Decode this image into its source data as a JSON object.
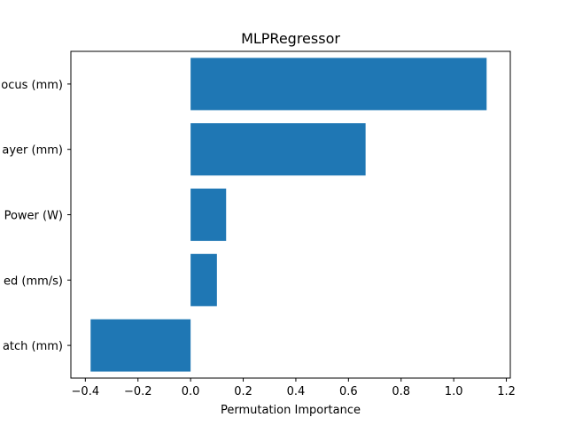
{
  "chart_data": {
    "type": "bar",
    "orientation": "horizontal",
    "title": "MLPRegressor",
    "xlabel": "Permutation Importance",
    "ylabel": "",
    "xlim": [
      -0.455,
      1.215
    ],
    "xticks": [
      -0.4,
      -0.2,
      0.0,
      0.2,
      0.4,
      0.6,
      0.8,
      1.0,
      1.2
    ],
    "xtick_labels": [
      "−0.4",
      "−0.2",
      "0.0",
      "0.2",
      "0.4",
      "0.6",
      "0.8",
      "1.0",
      "1.2"
    ],
    "categories": [
      "ocus (mm)",
      "ayer (mm)",
      "Power (W)",
      "ed (mm/s)",
      "atch (mm)"
    ],
    "values": [
      1.125,
      0.665,
      0.135,
      0.1,
      -0.38
    ],
    "bar_color": "#1f77b4",
    "grid": false,
    "legend": "none"
  }
}
